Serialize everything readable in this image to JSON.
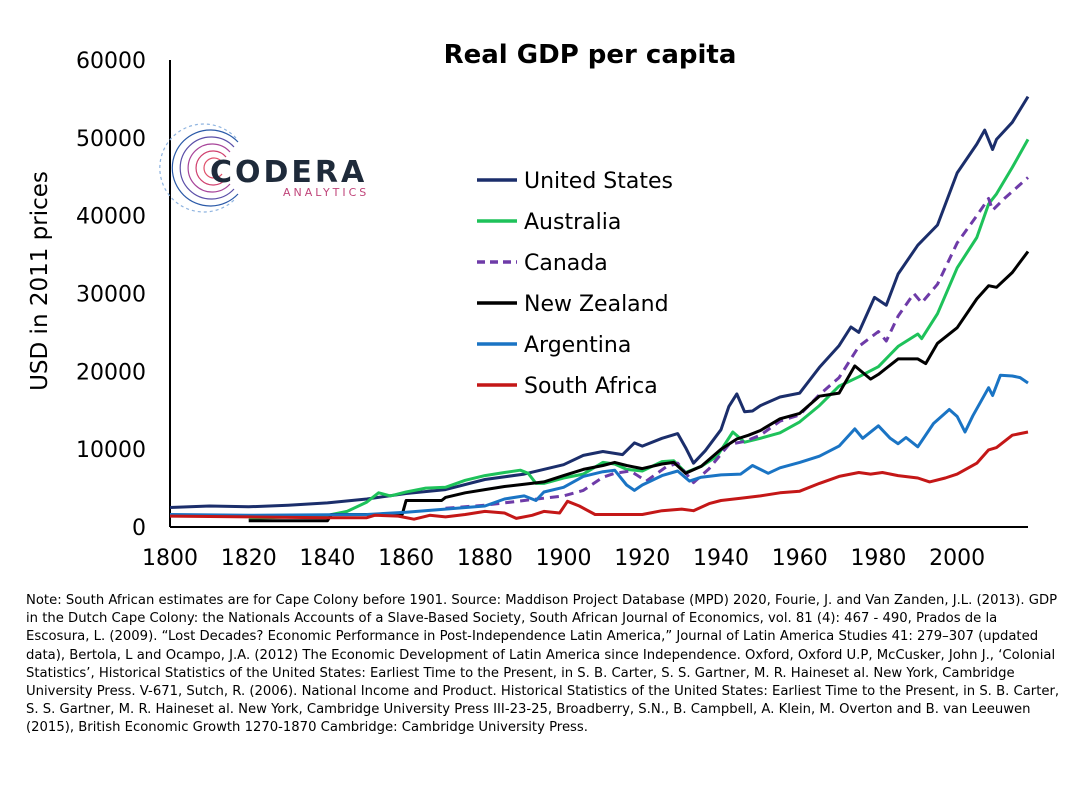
{
  "logo": {
    "name": "CODERA",
    "subtitle": "ANALYTICS"
  },
  "note": "Note: South African estimates are for Cape Colony before 1901. Source: Maddison Project Database (MPD) 2020, Fourie, J. and Van Zanden, J.L. (2013). GDP in the Dutch Cape Colony: the Nationals Accounts of a Slave-Based Society, South African Journal of Economics, vol. 81 (4): 467 - 490, Prados de la Escosura, L. (2009). “Lost Decades? Economic Performance in Post-Independence Latin America,” Journal of Latin America Studies 41: 279–307 (updated data), Bertola, L and Ocampo, J.A. (2012) The Economic Development of Latin America since Independence. Oxford, Oxford U.P, McCusker, John J., ‘Colonial Statistics’, Historical Statistics of the United States: Earliest Time to the Present, in S. B. Carter, S. S. Gartner, M. R. Haineset al. New York, Cambridge University Press. V-671, Sutch, R. (2006). National Income and Product. Historical Statistics of the United States: Earliest Time to the Present, in S. B. Carter, S. S. Gartner, M. R. Haineset al. New York, Cambridge University Press III-23-25, Broadberry, S.N., B. Campbell, A. Klein, M. Overton and B. van Leeuwen (2015), British Economic Growth 1270-1870 Cambridge: Cambridge University Press.",
  "chart_data": {
    "type": "line",
    "title": "Real GDP per capita",
    "xlabel": "",
    "ylabel": "USD in 2011 prices",
    "xlim": [
      1800,
      2018
    ],
    "ylim": [
      0,
      60000
    ],
    "xticks": [
      1800,
      1820,
      1840,
      1860,
      1880,
      1900,
      1920,
      1940,
      1960,
      1980,
      2000
    ],
    "yticks": [
      0,
      10000,
      20000,
      30000,
      40000,
      50000,
      60000
    ],
    "grid": false,
    "legend_position": "center",
    "series": [
      {
        "name": "United States",
        "color": "#1b2e6b",
        "dash": "solid",
        "points": [
          [
            1800,
            2500
          ],
          [
            1810,
            2700
          ],
          [
            1820,
            2600
          ],
          [
            1830,
            2800
          ],
          [
            1840,
            3100
          ],
          [
            1850,
            3600
          ],
          [
            1860,
            4300
          ],
          [
            1870,
            4800
          ],
          [
            1880,
            6100
          ],
          [
            1890,
            6800
          ],
          [
            1900,
            8000
          ],
          [
            1905,
            9200
          ],
          [
            1910,
            9700
          ],
          [
            1915,
            9300
          ],
          [
            1918,
            10800
          ],
          [
            1920,
            10400
          ],
          [
            1925,
            11400
          ],
          [
            1929,
            12000
          ],
          [
            1931,
            10200
          ],
          [
            1933,
            8200
          ],
          [
            1936,
            9800
          ],
          [
            1940,
            12500
          ],
          [
            1942,
            15500
          ],
          [
            1944,
            17100
          ],
          [
            1946,
            14800
          ],
          [
            1948,
            14900
          ],
          [
            1950,
            15600
          ],
          [
            1955,
            16700
          ],
          [
            1960,
            17200
          ],
          [
            1965,
            20500
          ],
          [
            1970,
            23300
          ],
          [
            1973,
            25700
          ],
          [
            1975,
            25000
          ],
          [
            1979,
            29500
          ],
          [
            1982,
            28500
          ],
          [
            1985,
            32500
          ],
          [
            1990,
            36200
          ],
          [
            1995,
            38800
          ],
          [
            2000,
            45500
          ],
          [
            2005,
            49200
          ],
          [
            2007,
            51000
          ],
          [
            2009,
            48500
          ],
          [
            2010,
            49800
          ],
          [
            2014,
            52000
          ],
          [
            2018,
            55300
          ]
        ]
      },
      {
        "name": "Australia",
        "color": "#1ec25a",
        "dash": "solid",
        "points": [
          [
            1820,
            1100
          ],
          [
            1830,
            1300
          ],
          [
            1840,
            1500
          ],
          [
            1845,
            2000
          ],
          [
            1850,
            3200
          ],
          [
            1853,
            4400
          ],
          [
            1856,
            4000
          ],
          [
            1860,
            4500
          ],
          [
            1865,
            5000
          ],
          [
            1870,
            5100
          ],
          [
            1875,
            6000
          ],
          [
            1880,
            6600
          ],
          [
            1885,
            7000
          ],
          [
            1889,
            7300
          ],
          [
            1891,
            6900
          ],
          [
            1893,
            5600
          ],
          [
            1895,
            5600
          ],
          [
            1900,
            6300
          ],
          [
            1905,
            6800
          ],
          [
            1910,
            8300
          ],
          [
            1913,
            8100
          ],
          [
            1916,
            7400
          ],
          [
            1920,
            7200
          ],
          [
            1925,
            8400
          ],
          [
            1928,
            8500
          ],
          [
            1931,
            7000
          ],
          [
            1935,
            7800
          ],
          [
            1939,
            9100
          ],
          [
            1943,
            12200
          ],
          [
            1946,
            10900
          ],
          [
            1950,
            11400
          ],
          [
            1955,
            12100
          ],
          [
            1960,
            13500
          ],
          [
            1965,
            15600
          ],
          [
            1970,
            18100
          ],
          [
            1975,
            19300
          ],
          [
            1980,
            20600
          ],
          [
            1985,
            23200
          ],
          [
            1990,
            24800
          ],
          [
            1991,
            24200
          ],
          [
            1995,
            27400
          ],
          [
            2000,
            33300
          ],
          [
            2005,
            37200
          ],
          [
            2008,
            41500
          ],
          [
            2010,
            42800
          ],
          [
            2014,
            46200
          ],
          [
            2018,
            49800
          ]
        ]
      },
      {
        "name": "Canada",
        "color": "#6e3ba8",
        "dash": "dashed",
        "points": [
          [
            1870,
            2400
          ],
          [
            1880,
            2800
          ],
          [
            1890,
            3400
          ],
          [
            1900,
            4000
          ],
          [
            1905,
            4700
          ],
          [
            1910,
            6400
          ],
          [
            1913,
            6900
          ],
          [
            1917,
            7200
          ],
          [
            1921,
            5900
          ],
          [
            1926,
            7700
          ],
          [
            1929,
            8200
          ],
          [
            1933,
            5700
          ],
          [
            1937,
            7500
          ],
          [
            1942,
            10600
          ],
          [
            1946,
            11000
          ],
          [
            1950,
            11800
          ],
          [
            1955,
            13600
          ],
          [
            1960,
            14400
          ],
          [
            1965,
            17000
          ],
          [
            1970,
            19200
          ],
          [
            1975,
            23200
          ],
          [
            1980,
            25100
          ],
          [
            1982,
            23900
          ],
          [
            1985,
            27100
          ],
          [
            1989,
            30000
          ],
          [
            1991,
            28800
          ],
          [
            1995,
            31200
          ],
          [
            2000,
            36500
          ],
          [
            2005,
            40000
          ],
          [
            2008,
            42200
          ],
          [
            2009,
            40700
          ],
          [
            2012,
            42200
          ],
          [
            2018,
            44900
          ]
        ]
      },
      {
        "name": "New Zealand",
        "color": "#000000",
        "dash": "solid",
        "points": [
          [
            1820,
            800
          ],
          [
            1825,
            800
          ],
          [
            1840,
            800
          ],
          [
            1841,
            1600
          ],
          [
            1859,
            1600
          ],
          [
            1860,
            3400
          ],
          [
            1869,
            3400
          ],
          [
            1870,
            3800
          ],
          [
            1875,
            4400
          ],
          [
            1880,
            4800
          ],
          [
            1885,
            5200
          ],
          [
            1890,
            5500
          ],
          [
            1895,
            5800
          ],
          [
            1900,
            6600
          ],
          [
            1905,
            7400
          ],
          [
            1910,
            7900
          ],
          [
            1913,
            8300
          ],
          [
            1916,
            7900
          ],
          [
            1920,
            7500
          ],
          [
            1925,
            8100
          ],
          [
            1928,
            8300
          ],
          [
            1931,
            6900
          ],
          [
            1935,
            7800
          ],
          [
            1940,
            10000
          ],
          [
            1944,
            11300
          ],
          [
            1947,
            11800
          ],
          [
            1950,
            12400
          ],
          [
            1955,
            13900
          ],
          [
            1960,
            14600
          ],
          [
            1965,
            16800
          ],
          [
            1970,
            17200
          ],
          [
            1974,
            20700
          ],
          [
            1978,
            19000
          ],
          [
            1980,
            19600
          ],
          [
            1985,
            21600
          ],
          [
            1990,
            21600
          ],
          [
            1992,
            21000
          ],
          [
            1995,
            23600
          ],
          [
            2000,
            25600
          ],
          [
            2005,
            29300
          ],
          [
            2008,
            31000
          ],
          [
            2010,
            30800
          ],
          [
            2014,
            32700
          ],
          [
            2018,
            35400
          ]
        ]
      },
      {
        "name": "Argentina",
        "color": "#1a74c4",
        "dash": "solid",
        "points": [
          [
            1800,
            1600
          ],
          [
            1820,
            1500
          ],
          [
            1850,
            1600
          ],
          [
            1860,
            1900
          ],
          [
            1870,
            2300
          ],
          [
            1880,
            2700
          ],
          [
            1885,
            3600
          ],
          [
            1890,
            4000
          ],
          [
            1893,
            3400
          ],
          [
            1895,
            4500
          ],
          [
            1900,
            5100
          ],
          [
            1905,
            6500
          ],
          [
            1910,
            7100
          ],
          [
            1913,
            7300
          ],
          [
            1916,
            5400
          ],
          [
            1918,
            4700
          ],
          [
            1920,
            5400
          ],
          [
            1925,
            6600
          ],
          [
            1929,
            7200
          ],
          [
            1932,
            5900
          ],
          [
            1935,
            6400
          ],
          [
            1940,
            6700
          ],
          [
            1945,
            6800
          ],
          [
            1948,
            7900
          ],
          [
            1952,
            6900
          ],
          [
            1955,
            7600
          ],
          [
            1960,
            8300
          ],
          [
            1965,
            9100
          ],
          [
            1970,
            10400
          ],
          [
            1974,
            12600
          ],
          [
            1976,
            11400
          ],
          [
            1980,
            13000
          ],
          [
            1983,
            11400
          ],
          [
            1985,
            10700
          ],
          [
            1987,
            11500
          ],
          [
            1990,
            10300
          ],
          [
            1994,
            13300
          ],
          [
            1998,
            15100
          ],
          [
            2000,
            14200
          ],
          [
            2002,
            12200
          ],
          [
            2004,
            14300
          ],
          [
            2008,
            17900
          ],
          [
            2009,
            16900
          ],
          [
            2011,
            19500
          ],
          [
            2014,
            19400
          ],
          [
            2016,
            19200
          ],
          [
            2018,
            18500
          ]
        ]
      },
      {
        "name": "South Africa",
        "color": "#c41717",
        "dash": "solid",
        "points": [
          [
            1800,
            1400
          ],
          [
            1820,
            1300
          ],
          [
            1840,
            1200
          ],
          [
            1850,
            1200
          ],
          [
            1852,
            1500
          ],
          [
            1858,
            1400
          ],
          [
            1862,
            1000
          ],
          [
            1866,
            1500
          ],
          [
            1870,
            1300
          ],
          [
            1875,
            1600
          ],
          [
            1880,
            2000
          ],
          [
            1885,
            1800
          ],
          [
            1888,
            1100
          ],
          [
            1892,
            1500
          ],
          [
            1895,
            2000
          ],
          [
            1899,
            1800
          ],
          [
            1901,
            3300
          ],
          [
            1904,
            2700
          ],
          [
            1908,
            1600
          ],
          [
            1912,
            1600
          ],
          [
            1920,
            1600
          ],
          [
            1925,
            2100
          ],
          [
            1930,
            2300
          ],
          [
            1933,
            2100
          ],
          [
            1937,
            3000
          ],
          [
            1940,
            3400
          ],
          [
            1945,
            3700
          ],
          [
            1950,
            4000
          ],
          [
            1955,
            4400
          ],
          [
            1960,
            4600
          ],
          [
            1965,
            5600
          ],
          [
            1970,
            6500
          ],
          [
            1975,
            7000
          ],
          [
            1978,
            6800
          ],
          [
            1981,
            7000
          ],
          [
            1985,
            6600
          ],
          [
            1990,
            6300
          ],
          [
            1993,
            5800
          ],
          [
            1997,
            6300
          ],
          [
            2000,
            6800
          ],
          [
            2005,
            8200
          ],
          [
            2008,
            9900
          ],
          [
            2010,
            10200
          ],
          [
            2014,
            11800
          ],
          [
            2018,
            12200
          ]
        ]
      }
    ]
  }
}
